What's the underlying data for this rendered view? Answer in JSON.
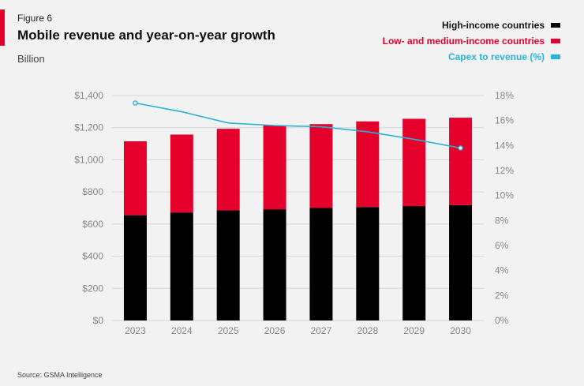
{
  "header": {
    "figure_label": "Figure 6",
    "title": "Mobile revenue and year-on-year growth",
    "unit_label": "Billion"
  },
  "legend": [
    {
      "label": "High-income countries",
      "color": "#000000",
      "text_color": "#111111"
    },
    {
      "label": "Low- and medium-income countries",
      "color": "#e4002b",
      "text_color": "#e4002b"
    },
    {
      "label": "Capex to revenue (%)",
      "color": "#27b3d9",
      "text_color": "#27b3d9"
    }
  ],
  "footer": {
    "source": "Source: GSMA Intelligence"
  },
  "chart_data": {
    "type": "bar",
    "stacked": true,
    "title": "Mobile revenue and year-on-year growth",
    "categories": [
      "2023",
      "2024",
      "2025",
      "2026",
      "2027",
      "2028",
      "2029",
      "2030"
    ],
    "series": [
      {
        "name": "High-income countries",
        "axis": "left",
        "color": "#000000",
        "values": [
          655,
          672,
          685,
          692,
          700,
          706,
          712,
          718
        ]
      },
      {
        "name": "Low- and medium-income countries",
        "axis": "left",
        "color": "#e4002b",
        "values": [
          460,
          485,
          508,
          522,
          522,
          533,
          543,
          544
        ]
      },
      {
        "name": "Capex to revenue (%)",
        "axis": "right",
        "type": "line",
        "color": "#27b3d9",
        "values": [
          17.4,
          16.7,
          15.8,
          15.6,
          15.5,
          15.1,
          14.5,
          13.8
        ]
      }
    ],
    "y_left": {
      "min": 0,
      "max": 1400,
      "ticks": [
        0,
        200,
        400,
        600,
        800,
        1000,
        1200,
        1400
      ],
      "tick_labels": [
        "$0",
        "$200",
        "$400",
        "$600",
        "$800",
        "$1,000",
        "$1,200",
        "$1,400"
      ]
    },
    "y_right": {
      "min": 0,
      "max": 18,
      "ticks": [
        0,
        2,
        4,
        6,
        8,
        10,
        12,
        14,
        16,
        18
      ],
      "tick_labels": [
        "0%",
        "2%",
        "4%",
        "6%",
        "8%",
        "10%",
        "12%",
        "14%",
        "16%",
        "18%"
      ]
    },
    "grid": true
  }
}
